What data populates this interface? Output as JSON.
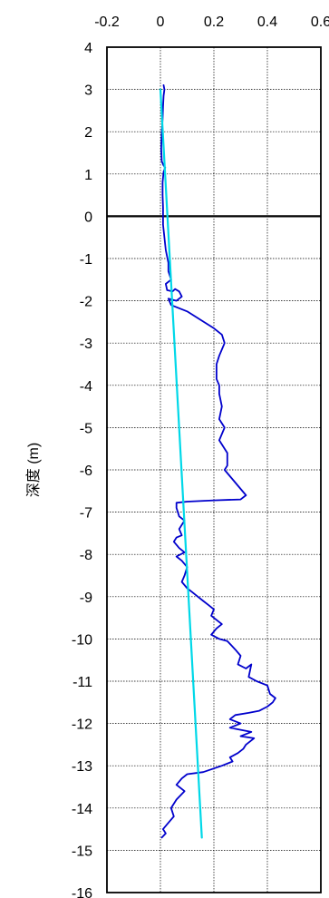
{
  "chart_data": {
    "type": "line",
    "title": "",
    "xlabel": "",
    "ylabel": "深度 (m)",
    "xlim": [
      -0.2,
      0.6
    ],
    "ylim": [
      -16,
      4
    ],
    "x_ticks": [
      -0.2,
      0,
      0.2,
      0.4,
      0.6
    ],
    "x_tick_labels": [
      "-0.2",
      "0",
      "0.2",
      "0.4",
      "0.6"
    ],
    "y_ticks": [
      4,
      3,
      2,
      1,
      0,
      -1,
      -2,
      -3,
      -4,
      -5,
      -6,
      -7,
      -8,
      -9,
      -10,
      -11,
      -12,
      -13,
      -14,
      -15,
      -16
    ],
    "y_tick_labels": [
      "4",
      "3",
      "2",
      "1",
      "0",
      "-1",
      "-2",
      "-3",
      "-4",
      "-5",
      "-6",
      "-7",
      "-8",
      "-9",
      "-10",
      "-11",
      "-12",
      "-13",
      "-14",
      "-15",
      "-16"
    ],
    "x_axis_position": "top",
    "grid": true,
    "zero_line": true,
    "colors": {
      "measured": "#0000cc",
      "fit": "#00d8e8",
      "grid": "#000000"
    },
    "series": [
      {
        "color": "#0000cc",
        "points": [
          [
            0.012,
            3.1
          ],
          [
            0.015,
            3.0
          ],
          [
            0.012,
            2.85
          ],
          [
            0.01,
            2.6
          ],
          [
            0.008,
            2.3
          ],
          [
            0.005,
            2.0
          ],
          [
            0.003,
            1.6
          ],
          [
            0.005,
            1.3
          ],
          [
            0.012,
            1.2
          ],
          [
            0.018,
            1.15
          ],
          [
            0.012,
            1.05
          ],
          [
            0.008,
            0.8
          ],
          [
            0.008,
            0.5
          ],
          [
            0.01,
            0.2
          ],
          [
            0.01,
            0.0
          ],
          [
            0.01,
            -0.2
          ],
          [
            0.015,
            -0.5
          ],
          [
            0.02,
            -0.8
          ],
          [
            0.03,
            -1.1
          ],
          [
            0.03,
            -1.3
          ],
          [
            0.04,
            -1.5
          ],
          [
            0.02,
            -1.6
          ],
          [
            0.025,
            -1.75
          ],
          [
            0.045,
            -1.78
          ],
          [
            0.055,
            -1.72
          ],
          [
            0.07,
            -1.78
          ],
          [
            0.08,
            -1.9
          ],
          [
            0.06,
            -2.0
          ],
          [
            0.03,
            -1.95
          ],
          [
            0.04,
            -2.1
          ],
          [
            0.1,
            -2.25
          ],
          [
            0.15,
            -2.45
          ],
          [
            0.2,
            -2.65
          ],
          [
            0.23,
            -2.8
          ],
          [
            0.24,
            -3.0
          ],
          [
            0.22,
            -3.3
          ],
          [
            0.21,
            -3.5
          ],
          [
            0.21,
            -3.7
          ],
          [
            0.21,
            -3.85
          ],
          [
            0.22,
            -4.0
          ],
          [
            0.22,
            -4.2
          ],
          [
            0.23,
            -4.5
          ],
          [
            0.22,
            -4.8
          ],
          [
            0.24,
            -5.0
          ],
          [
            0.22,
            -5.3
          ],
          [
            0.25,
            -5.6
          ],
          [
            0.25,
            -5.9
          ],
          [
            0.24,
            -6.0
          ],
          [
            0.26,
            -6.15
          ],
          [
            0.28,
            -6.3
          ],
          [
            0.3,
            -6.45
          ],
          [
            0.32,
            -6.6
          ],
          [
            0.3,
            -6.7
          ],
          [
            0.2,
            -6.72
          ],
          [
            0.1,
            -6.75
          ],
          [
            0.06,
            -6.78
          ],
          [
            0.06,
            -6.9
          ],
          [
            0.07,
            -7.1
          ],
          [
            0.09,
            -7.2
          ],
          [
            0.07,
            -7.4
          ],
          [
            0.08,
            -7.55
          ],
          [
            0.06,
            -7.6
          ],
          [
            0.05,
            -7.7
          ],
          [
            0.07,
            -7.85
          ],
          [
            0.09,
            -7.95
          ],
          [
            0.06,
            -8.05
          ],
          [
            0.08,
            -8.15
          ],
          [
            0.1,
            -8.3
          ],
          [
            0.09,
            -8.5
          ],
          [
            0.08,
            -8.65
          ],
          [
            0.1,
            -8.8
          ],
          [
            0.12,
            -8.9
          ],
          [
            0.14,
            -9.0
          ],
          [
            0.16,
            -9.1
          ],
          [
            0.18,
            -9.2
          ],
          [
            0.2,
            -9.3
          ],
          [
            0.19,
            -9.45
          ],
          [
            0.21,
            -9.55
          ],
          [
            0.23,
            -9.65
          ],
          [
            0.21,
            -9.75
          ],
          [
            0.19,
            -9.9
          ],
          [
            0.22,
            -10.0
          ],
          [
            0.25,
            -10.05
          ],
          [
            0.28,
            -10.25
          ],
          [
            0.3,
            -10.4
          ],
          [
            0.29,
            -10.6
          ],
          [
            0.32,
            -10.7
          ],
          [
            0.34,
            -10.6
          ],
          [
            0.33,
            -10.9
          ],
          [
            0.36,
            -11.0
          ],
          [
            0.4,
            -11.1
          ],
          [
            0.41,
            -11.3
          ],
          [
            0.43,
            -11.4
          ],
          [
            0.42,
            -11.5
          ],
          [
            0.4,
            -11.6
          ],
          [
            0.37,
            -11.7
          ],
          [
            0.33,
            -11.75
          ],
          [
            0.28,
            -11.8
          ],
          [
            0.26,
            -11.9
          ],
          [
            0.3,
            -12.0
          ],
          [
            0.26,
            -12.1
          ],
          [
            0.3,
            -12.15
          ],
          [
            0.34,
            -12.2
          ],
          [
            0.3,
            -12.3
          ],
          [
            0.35,
            -12.35
          ],
          [
            0.32,
            -12.5
          ],
          [
            0.31,
            -12.6
          ],
          [
            0.29,
            -12.7
          ],
          [
            0.26,
            -12.8
          ],
          [
            0.27,
            -12.9
          ],
          [
            0.23,
            -13.0
          ],
          [
            0.16,
            -13.15
          ],
          [
            0.1,
            -13.2
          ],
          [
            0.08,
            -13.3
          ],
          [
            0.06,
            -13.45
          ],
          [
            0.09,
            -13.6
          ],
          [
            0.06,
            -13.8
          ],
          [
            0.04,
            -14.0
          ],
          [
            0.05,
            -14.2
          ],
          [
            0.03,
            -14.35
          ],
          [
            0.01,
            -14.5
          ],
          [
            0.02,
            -14.6
          ],
          [
            0.005,
            -14.7
          ]
        ]
      },
      {
        "color": "#00d8e8",
        "points": [
          [
            0.0,
            3.0
          ],
          [
            0.155,
            -14.7
          ]
        ]
      }
    ]
  }
}
